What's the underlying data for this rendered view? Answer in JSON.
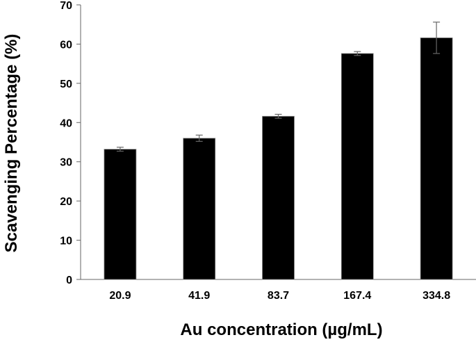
{
  "chart_data": {
    "type": "bar",
    "title": "",
    "xlabel": "Au concentration  (µg/mL)",
    "ylabel": "Scavenging Percentage (%)",
    "categories": [
      "20.9",
      "41.9",
      "83.7",
      "167.4",
      "334.8"
    ],
    "values": [
      33.2,
      36.0,
      41.6,
      57.6,
      61.6
    ],
    "error": [
      0.5,
      0.8,
      0.5,
      0.5,
      4.0
    ],
    "ylim": [
      0,
      70
    ],
    "yticks": [
      0,
      10,
      20,
      30,
      40,
      50,
      60,
      70
    ],
    "grid": false,
    "legend": null,
    "bar_color": "#000000",
    "error_bar_color": "#666666"
  }
}
